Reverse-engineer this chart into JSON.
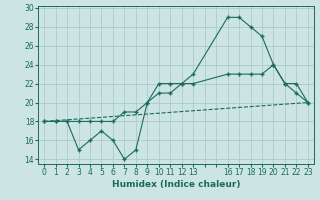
{
  "xlabel": "Humidex (Indice chaleur)",
  "bg_color": "#cce4e4",
  "grid_color": "#aacccc",
  "line_color": "#1a6b5a",
  "xlim": [
    -0.5,
    23.5
  ],
  "ylim": [
    13.5,
    30.2
  ],
  "xticks": [
    0,
    1,
    2,
    3,
    4,
    5,
    6,
    7,
    8,
    9,
    10,
    11,
    12,
    13,
    14,
    15,
    16,
    17,
    18,
    19,
    20,
    21,
    22,
    23
  ],
  "xtick_labels": [
    "0",
    "1",
    "2",
    "3",
    "4",
    "5",
    "6",
    "7",
    "8",
    "9",
    "10",
    "11",
    "12",
    "13",
    "",
    "",
    "16",
    "17",
    "18",
    "19",
    "20",
    "21",
    "22",
    "23"
  ],
  "yticks": [
    14,
    16,
    18,
    20,
    22,
    24,
    26,
    28,
    30
  ],
  "line1_x": [
    0,
    1,
    2,
    3,
    4,
    5,
    6,
    7,
    8,
    9,
    10,
    11,
    12,
    13,
    16,
    17,
    18,
    19,
    20,
    21,
    22,
    23
  ],
  "line1_y": [
    18,
    18,
    18,
    15,
    16,
    17,
    16,
    14,
    15,
    20,
    22,
    22,
    22,
    23,
    29,
    29,
    28,
    27,
    24,
    22,
    21,
    20
  ],
  "line2_x": [
    0,
    1,
    2,
    3,
    4,
    5,
    6,
    7,
    8,
    9,
    10,
    11,
    12,
    13,
    16,
    17,
    18,
    19,
    20,
    21,
    22,
    23
  ],
  "line2_y": [
    18,
    18,
    18,
    18,
    18,
    18,
    18,
    19,
    19,
    20,
    21,
    21,
    22,
    22,
    23,
    23,
    23,
    23,
    24,
    22,
    22,
    20
  ],
  "line3_x": [
    0,
    23
  ],
  "line3_y": [
    18,
    20
  ]
}
